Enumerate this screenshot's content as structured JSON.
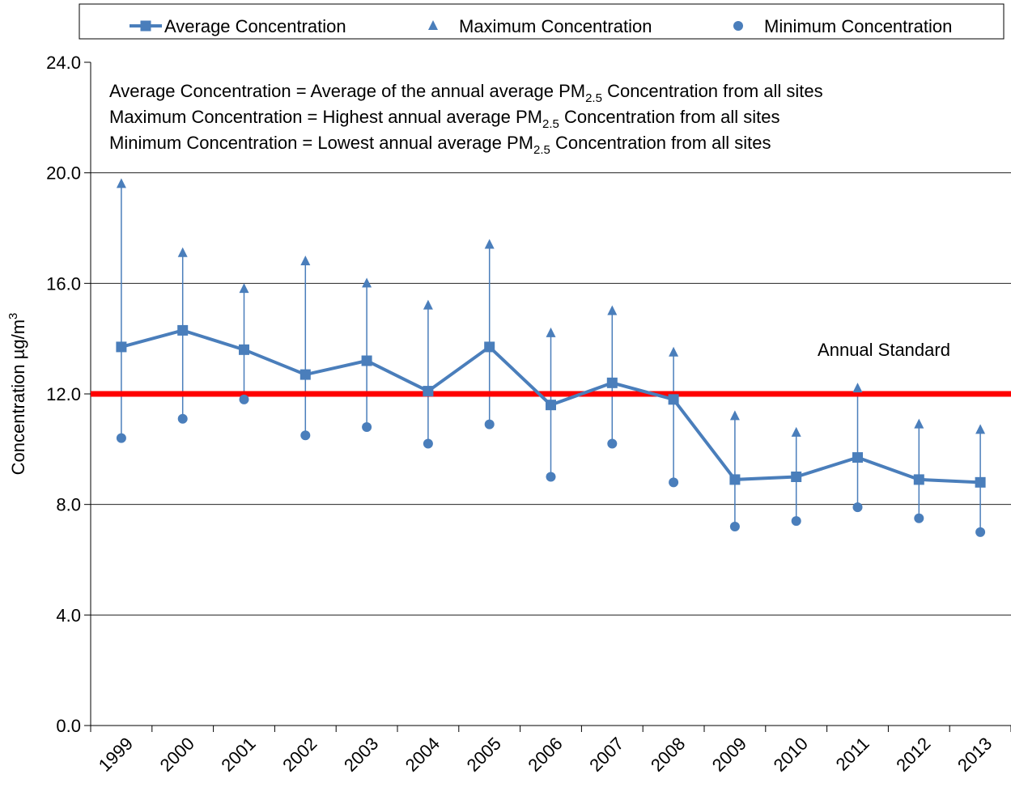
{
  "chart_data": {
    "type": "line",
    "y_label": {
      "text": "Concentration µg/m",
      "sup": "3"
    },
    "notes": [
      {
        "before": "Average Concentration = Average of the annual average PM",
        "sub": "2.5",
        "after": " Concentration from all sites"
      },
      {
        "before": "Maximum Concentration = Highest annual average PM",
        "sub": "2.5",
        "after": " Concentration from all sites"
      },
      {
        "before": "Minimum Concentration = Lowest annual average PM",
        "sub": "2.5",
        "after": " Concentration from all sites"
      }
    ],
    "categories": [
      "1999",
      "2000",
      "2001",
      "2002",
      "2003",
      "2004",
      "2005",
      "2006",
      "2007",
      "2008",
      "2009",
      "2010",
      "2011",
      "2012",
      "2013"
    ],
    "series": [
      {
        "name": "Average Concentration",
        "color": "#4a7ebb",
        "marker": "square",
        "line": true,
        "values": [
          13.7,
          14.3,
          13.6,
          12.7,
          13.2,
          12.1,
          13.7,
          11.6,
          12.4,
          11.8,
          8.9,
          9.0,
          9.7,
          8.9,
          8.8
        ]
      },
      {
        "name": "Maximum Concentration",
        "color": "#4a7ebb",
        "marker": "triangle",
        "line": false,
        "values": [
          19.6,
          17.1,
          15.8,
          16.8,
          16.0,
          15.2,
          17.4,
          14.2,
          15.0,
          13.5,
          11.2,
          10.6,
          12.2,
          10.9,
          10.7
        ]
      },
      {
        "name": "Minimum Concentration",
        "color": "#4a7ebb",
        "marker": "circle",
        "line": false,
        "values": [
          10.4,
          11.1,
          11.8,
          10.5,
          10.8,
          10.2,
          10.9,
          9.0,
          10.2,
          8.8,
          7.2,
          7.4,
          7.9,
          7.5,
          7.0
        ]
      }
    ],
    "annual_standard": {
      "label": "Annual Standard",
      "value": 12,
      "color": "#ff0000"
    },
    "ylim": [
      0,
      24
    ],
    "yticks": [
      {
        "value": 0,
        "label": "0.0"
      },
      {
        "value": 4,
        "label": "4.0"
      },
      {
        "value": 8,
        "label": "8.0"
      },
      {
        "value": 12,
        "label": "12.0"
      },
      {
        "value": 16,
        "label": "16.0"
      },
      {
        "value": 20,
        "label": "20.0"
      },
      {
        "value": 24,
        "label": "24.0"
      }
    ],
    "grid": true,
    "legend": "top"
  }
}
